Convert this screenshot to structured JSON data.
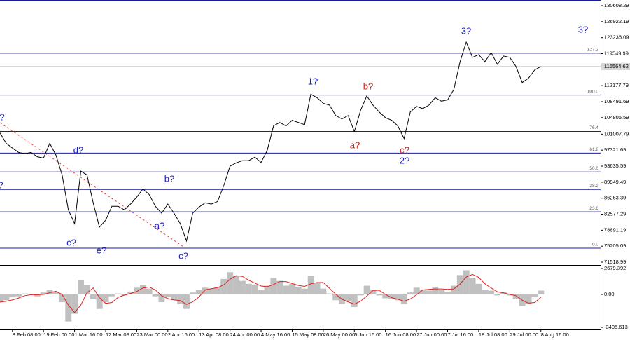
{
  "chart_data": [
    {
      "type": "line",
      "series": [
        {
          "color": "#000000",
          "values": [
            101300,
            98900,
            97800,
            96800,
            96500,
            96800,
            95800,
            95500,
            98900,
            96200,
            91600,
            83600,
            80400,
            92500,
            91600,
            85200,
            79600,
            81200,
            84400,
            84400,
            83600,
            84900,
            86500,
            88400,
            87100,
            84400,
            82800,
            84900,
            82800,
            80400,
            76400,
            82800,
            84200,
            85200,
            84900,
            85500,
            89200,
            93600,
            94400,
            94900,
            94900,
            95700,
            94500,
            97300,
            102900,
            103700,
            102900,
            104200,
            103700,
            103200,
            110200,
            109400,
            108100,
            107700,
            105300,
            104500,
            105300,
            101600,
            106500,
            109800,
            107700,
            106100,
            104800,
            104200,
            102900,
            100000,
            106100,
            107400,
            106900,
            107700,
            109400,
            108600,
            108900,
            111300,
            117700,
            122200,
            118700,
            119300,
            117700,
            119800,
            117100,
            119000,
            118700,
            116600,
            112900,
            113900,
            115800,
            116600
          ]
        }
      ],
      "current_price": 116564.62,
      "xlim": [
        0,
        96.6
      ],
      "xticks": [
        {
          "value": 2,
          "label": "8 Feb 08:00"
        },
        {
          "value": 7,
          "label": "19 Feb 00:00"
        },
        {
          "value": 12,
          "label": "1 Mar 16:00"
        },
        {
          "value": 17,
          "label": "12 Mar 08:00"
        },
        {
          "value": 22,
          "label": "23 Mar 00:00"
        },
        {
          "value": 27,
          "label": "2 Apr 16:00"
        },
        {
          "value": 32,
          "label": "13 Apr 08:00"
        },
        {
          "value": 37,
          "label": "24 Apr 00:00"
        },
        {
          "value": 42,
          "label": "4 May 16:00"
        },
        {
          "value": 47,
          "label": "15 May 08:00"
        },
        {
          "value": 52,
          "label": "26 May 00:00"
        },
        {
          "value": 57,
          "label": "5 Jun 16:00"
        },
        {
          "value": 62,
          "label": "16 Jun 08:00"
        },
        {
          "value": 67,
          "label": "27 Jun 00:00"
        },
        {
          "value": 72,
          "label": "7 Jul 16:00"
        },
        {
          "value": 77,
          "label": "18 Jul 08:00"
        },
        {
          "value": 82,
          "label": "29 Jul 00:00"
        },
        {
          "value": 87,
          "label": "8 Aug 16:00"
        }
      ],
      "ylim": [
        71200,
        131900
      ],
      "yticks": [
        130608.29,
        126922.19,
        123236.09,
        119549.99,
        112177.79,
        108491.69,
        104805.59,
        101007.79,
        97321.69,
        93635.59,
        89949.49,
        86263.39,
        82577.29,
        78891.19,
        75205.09,
        71518.99
      ],
      "fib_levels": [
        {
          "label": "127.2",
          "value": 119660
        },
        {
          "label": "100.0",
          "value": 110000
        },
        {
          "label": "76.4",
          "value": 101640
        },
        {
          "label": "61.8",
          "value": 96640
        },
        {
          "label": "50.0",
          "value": 92300
        },
        {
          "label": "38.2",
          "value": 88270
        },
        {
          "label": "23.6",
          "value": 83120
        },
        {
          "label": "0.0",
          "value": 74750
        }
      ],
      "fib_color": "#1c1c9c",
      "annotations": [
        {
          "text": "?",
          "color": "#1c1cc8"
        },
        {
          "text": "?",
          "color": "#1c1cc8"
        },
        {
          "text": "d?",
          "color": "#1c1cc8"
        },
        {
          "text": "c?",
          "color": "#1c1cc8"
        },
        {
          "text": "e?",
          "color": "#1c1cc8"
        },
        {
          "text": "b?",
          "color": "#1c1cc8"
        },
        {
          "text": "a?",
          "color": "#1c1cc8"
        },
        {
          "text": "c?",
          "color": "#1c1cc8"
        },
        {
          "text": "1?",
          "color": "#1c1cc8"
        },
        {
          "text": "b?",
          "color": "#c81c1c"
        },
        {
          "text": "a?",
          "color": "#c81c1c"
        },
        {
          "text": "c?",
          "color": "#c81c1c"
        },
        {
          "text": "2?",
          "color": "#1c1cc8"
        },
        {
          "text": "3?",
          "color": "#1c1cc8"
        },
        {
          "text": "3?",
          "color": "#1c1cc8"
        }
      ]
    },
    {
      "type": "bar",
      "series": [
        {
          "color": "#c0c0c0",
          "values": [
            -800,
            -600,
            -300,
            -200,
            100,
            0,
            -200,
            200,
            500,
            300,
            -800,
            -2800,
            -2000,
            1500,
            1000,
            -500,
            -1500,
            -800,
            -200,
            100,
            -100,
            300,
            700,
            1000,
            600,
            -200,
            -800,
            -300,
            -600,
            -1000,
            -1500,
            200,
            500,
            700,
            600,
            800,
            1600,
            2300,
            1900,
            1400,
            1100,
            1000,
            500,
            900,
            1700,
            1400,
            900,
            1100,
            800,
            600,
            1900,
            1200,
            600,
            100,
            -600,
            -1000,
            -700,
            -1300,
            -100,
            900,
            500,
            -100,
            -400,
            -500,
            -600,
            -1000,
            200,
            700,
            500,
            400,
            800,
            500,
            300,
            900,
            2000,
            2500,
            1700,
            1100,
            500,
            400,
            -100,
            200,
            -100,
            -500,
            -1200,
            -1000,
            -300,
            400
          ]
        },
        {
          "color": "#e02020",
          "values": [
            -800,
            -700,
            -570,
            -370,
            -130,
            -30,
            -30,
            0,
            170,
            330,
            0,
            -1100,
            -1870,
            -1100,
            170,
            670,
            -330,
            -930,
            -830,
            -300,
            -70,
            100,
            300,
            670,
            770,
            470,
            -130,
            -430,
            -570,
            -630,
            -1030,
            -770,
            -270,
            470,
            600,
            700,
            1000,
            1570,
            1930,
            1870,
            1470,
            1170,
            870,
            800,
            1030,
            1330,
            1330,
            1130,
            930,
            830,
            1100,
            1230,
            1230,
            630,
            30,
            -500,
            -770,
            -1000,
            -700,
            -170,
            430,
            430,
            0,
            -330,
            -500,
            -700,
            -470,
            -30,
            470,
            530,
            570,
            570,
            530,
            570,
            1070,
            1800,
            2070,
            1770,
            1100,
            670,
            270,
            170,
            0,
            -130,
            -600,
            -900,
            -830,
            -300
          ]
        }
      ],
      "xlim": [
        0,
        96.6
      ],
      "ylim": [
        -3620,
        3040
      ],
      "yticks": [
        2679.392,
        {
          "value": 0,
          "label": "0.00"
        },
        -3405.613
      ]
    }
  ]
}
